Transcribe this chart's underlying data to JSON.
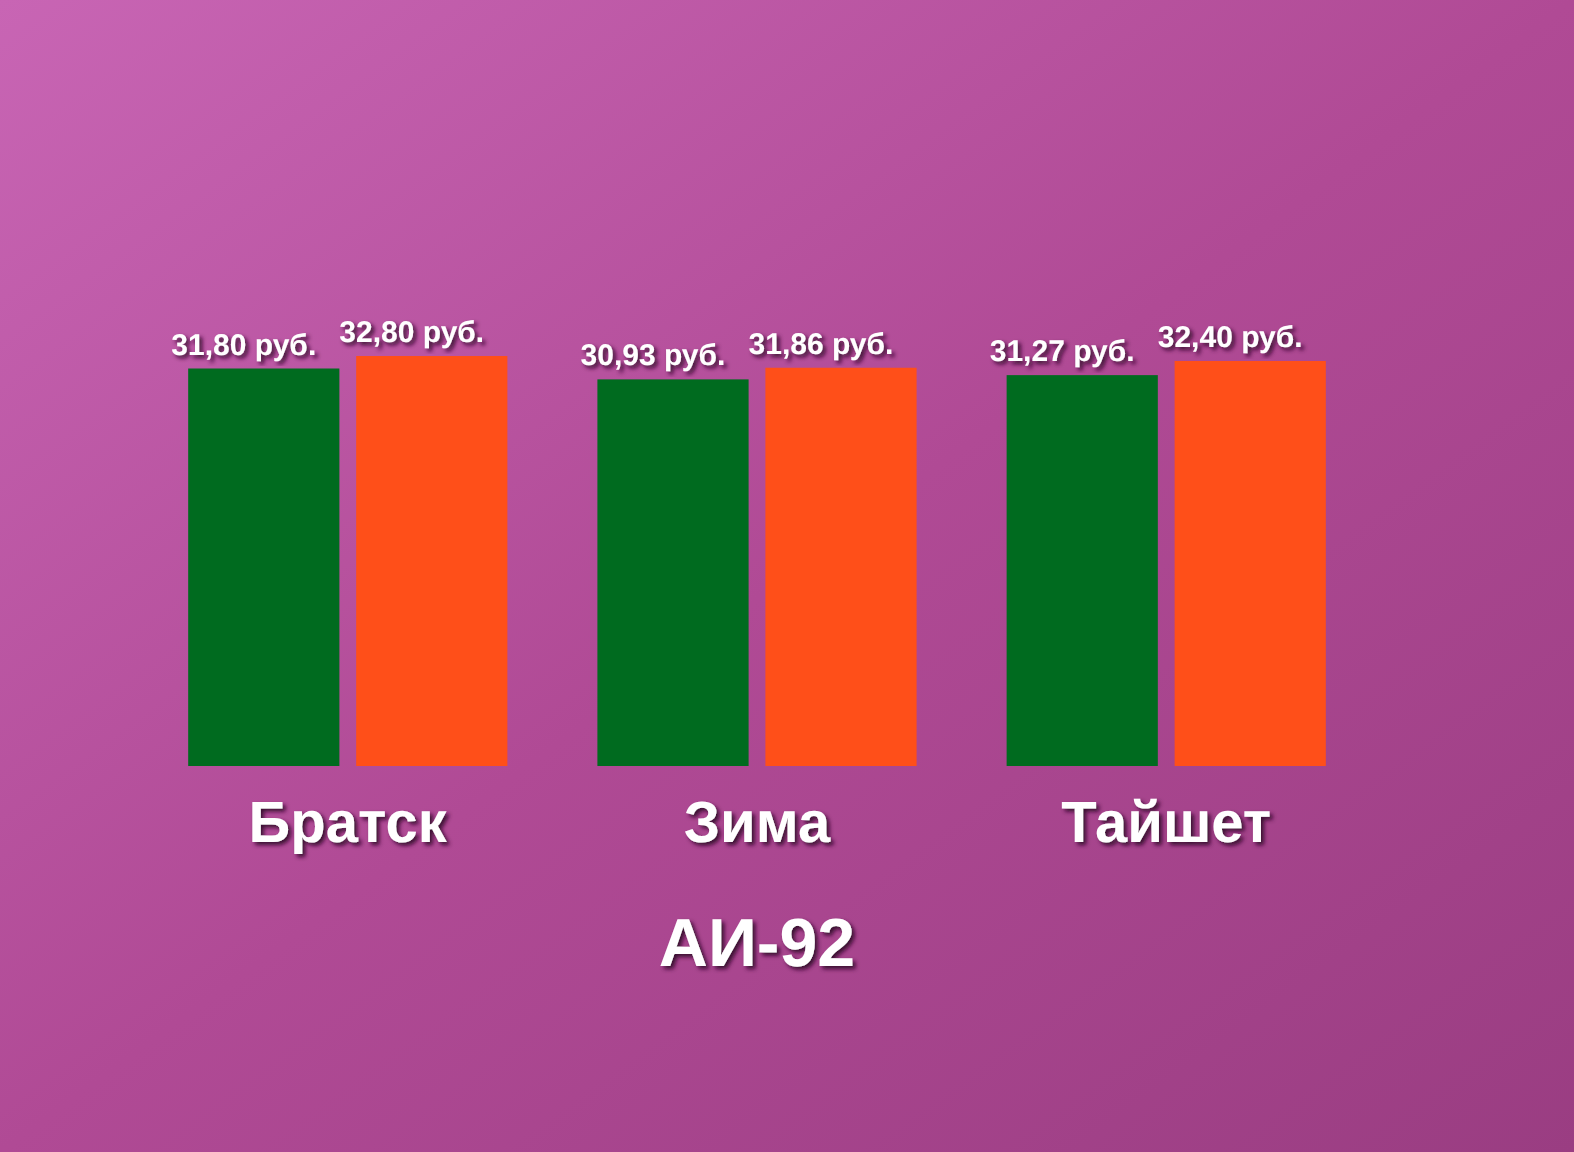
{
  "chart_data": {
    "type": "bar",
    "xlabel": "АИ-92",
    "categories": [
      "Братск",
      "Зима",
      "Тайшет"
    ],
    "series": [
      {
        "color": "#006b1f",
        "values": [
          31.8,
          30.93,
          31.27
        ],
        "value_labels": [
          "31,80 руб.",
          "30,93 руб.",
          "31,27 руб."
        ]
      },
      {
        "color": "#ff4f19",
        "values": [
          32.8,
          31.86,
          32.4
        ],
        "value_labels": [
          "32,80 руб.",
          "31,86 руб.",
          "32,40 руб."
        ]
      }
    ]
  }
}
